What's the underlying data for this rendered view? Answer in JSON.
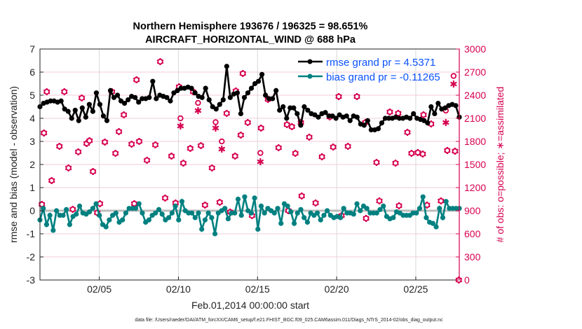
{
  "chart_data": {
    "type": "line",
    "title_line1": "Northern Hemisphere 193676 / 196325 = 98.651%",
    "title_line2": "AIRCRAFT_HORIZONTAL_WIND @ 688 hPa",
    "xlabel": "Feb.01,2014 00:00:00 start",
    "ylabel_left": "rmse and bias (model - observation)",
    "ylabel_right": "# of obs: o=possible; ∗=assimilated",
    "footer": "data file: /Users/raeder/DAI/ATM_forcXX/CAM6_setup/f.e21.FHIST_BGC.f09_025.CAM6assim.011/Diags_NTrS_2014-02/obs_diag_output.nc",
    "x_range_days": [
      1.25,
      27.75
    ],
    "ylim_left": [
      -3,
      7
    ],
    "ylim_right": [
      0,
      3000
    ],
    "x_ticks": [
      {
        "day": 5,
        "label": "02/05"
      },
      {
        "day": 10,
        "label": "02/10"
      },
      {
        "day": 15,
        "label": "02/15"
      },
      {
        "day": 20,
        "label": "02/20"
      },
      {
        "day": 25,
        "label": "02/25"
      }
    ],
    "y_ticks_left": [
      "7",
      "6",
      "5",
      "4",
      "3",
      "2",
      "1",
      "0",
      "-1",
      "-2",
      "-3"
    ],
    "y_ticks_right": [
      "3000",
      "2700",
      "2400",
      "2100",
      "1800",
      "1500",
      "1200",
      "900",
      "600",
      "300",
      "0"
    ],
    "legend": [
      {
        "label": "rmse grand pr = 4.5371",
        "color": "#000000"
      },
      {
        "label": "bias grand pr = -0.11265",
        "color": "#008080"
      }
    ],
    "legend_text_color": "#0a52ff",
    "right_axis_color": "#d6004f",
    "series": [
      {
        "name": "rmse",
        "color": "#000000",
        "values": [
          4.5,
          4.65,
          4.7,
          4.75,
          4.75,
          4.7,
          4.75,
          4.4,
          4.3,
          4.0,
          4.35,
          3.9,
          4.45,
          4.05,
          4.6,
          4.3,
          5.1,
          4.6,
          4.1,
          3.9,
          5.2,
          4.9,
          5.0,
          4.75,
          4.65,
          4.8,
          4.95,
          4.9,
          4.7,
          4.85,
          4.85,
          4.9,
          5.6,
          4.85,
          5.0,
          4.95,
          4.9,
          4.75,
          5.1,
          5.2,
          5.3,
          5.3,
          5.35,
          5.3,
          5.1,
          4.95,
          4.9,
          5.3,
          4.8,
          4.5,
          4.4,
          4.6,
          4.8,
          6.25,
          4.9,
          5.05,
          5.1,
          4.2,
          4.9,
          5.1,
          5.3,
          5.5,
          5.6,
          5.9,
          5.0,
          4.85,
          4.85,
          5.2,
          4.35,
          4.5,
          4.0,
          4.45,
          4.45,
          4.2,
          3.7,
          4.5,
          4.35,
          4.2,
          4.15,
          4.05,
          4.2,
          4.25,
          4.1,
          4.1,
          4.0,
          4.15,
          4.05,
          4.1,
          3.9,
          4.1,
          4.05,
          3.75,
          3.7,
          3.9,
          3.5,
          3.5,
          3.55,
          3.8,
          4.0,
          4.0,
          4.0,
          4.05,
          4.0,
          4.0,
          4.05,
          4.0,
          4.2,
          4.0,
          3.95,
          3.9,
          3.8,
          4.5,
          4.2,
          4.65,
          4.4,
          4.45,
          4.55,
          4.6,
          4.55,
          4.05
        ]
      },
      {
        "name": "bias",
        "color": "#008080",
        "values": [
          -0.4,
          0.1,
          -0.6,
          -0.2,
          -0.85,
          0.0,
          -0.2,
          -0.2,
          0.05,
          -0.6,
          -0.25,
          -0.15,
          0.2,
          -0.1,
          -0.15,
          -0.05,
          0.1,
          0.3,
          -0.2,
          -0.6,
          -0.7,
          -0.4,
          -0.2,
          -0.1,
          -0.5,
          -0.4,
          -0.1,
          0.1,
          0.1,
          0.1,
          0.3,
          -0.1,
          -0.5,
          -0.4,
          -0.2,
          -0.1,
          0.05,
          -0.15,
          -0.4,
          -0.3,
          -0.1,
          0.2,
          -0.4,
          0.4,
          0.0,
          -0.1,
          -0.1,
          -0.3,
          -0.1,
          -0.8,
          -0.4,
          -0.1,
          -0.3,
          -1.0,
          -0.1,
          0.0,
          0.1,
          -0.35,
          -0.1,
          -0.1,
          0.5,
          -0.2,
          0.6,
          0.0,
          -0.1,
          0.55,
          -0.8,
          0.2,
          -0.1,
          0.1,
          0.0,
          -0.1,
          0.1,
          -0.55,
          0.3,
          0.2,
          -0.05,
          -0.55,
          -0.1,
          0.05,
          -0.3,
          -0.5,
          -0.1,
          -0.2,
          -0.1,
          -0.4,
          -0.2,
          0.0,
          -0.2,
          -0.3,
          -0.25,
          -0.3,
          0.1,
          -0.1,
          -0.1,
          -0.15,
          0.3,
          0.0,
          0.2,
          0.1,
          -0.1,
          -0.1,
          -0.1,
          0.05,
          0.2,
          -0.25,
          -0.35,
          -0.3,
          -0.05,
          -0.1,
          -0.2,
          -0.2,
          -0.2,
          -0.1,
          -0.1,
          0.1,
          0.6,
          -0.3,
          -0.5,
          -0.55,
          -0.7,
          0.1,
          -0.3,
          0.4,
          0.1,
          0.1,
          0.1,
          0.1
        ]
      }
    ],
    "obs_columns": [
      "day",
      "possible",
      "assimilated"
    ],
    "obs": [
      [
        1.37,
        982,
        982
      ],
      [
        1.5,
        1909,
        1909
      ],
      [
        1.68,
        2445,
        2445
      ],
      [
        1.99,
        1291,
        1291
      ],
      [
        2.48,
        1736,
        1736
      ],
      [
        2.79,
        2445,
        2445
      ],
      [
        3.05,
        1455,
        1455
      ],
      [
        3.32,
        918,
        918
      ],
      [
        3.67,
        1664,
        1664
      ],
      [
        3.89,
        2364,
        2364
      ],
      [
        4.2,
        1773,
        1773
      ],
      [
        4.38,
        1809,
        1809
      ],
      [
        4.6,
        1409,
        1409
      ],
      [
        4.87,
        873,
        873
      ],
      [
        5.04,
        991,
        991
      ],
      [
        5.35,
        1791,
        1791
      ],
      [
        5.8,
        2445,
        2445
      ],
      [
        6.02,
        1645,
        1645
      ],
      [
        6.24,
        1927,
        1927
      ],
      [
        6.55,
        2145,
        2145
      ],
      [
        7.04,
        1764,
        1764
      ],
      [
        7.21,
        991,
        991
      ],
      [
        7.35,
        2600,
        2600
      ],
      [
        7.52,
        1800,
        1800
      ],
      [
        8.01,
        1555,
        1555
      ],
      [
        8.54,
        1755,
        1755
      ],
      [
        8.85,
        2836,
        2836
      ],
      [
        9.16,
        1064,
        1064
      ],
      [
        9.56,
        1609,
        1609
      ],
      [
        9.82,
        1000,
        1000
      ],
      [
        10.04,
        2509,
        2509
      ],
      [
        10.13,
        2100,
        2000
      ],
      [
        10.31,
        1518,
        1518
      ],
      [
        10.75,
        1709,
        1709
      ],
      [
        10.93,
        2445,
        2445
      ],
      [
        11.24,
        2300,
        2200
      ],
      [
        11.42,
        1745,
        1745
      ],
      [
        11.68,
        973,
        973
      ],
      [
        12.12,
        1455,
        1455
      ],
      [
        12.35,
        2050,
        1973
      ],
      [
        12.61,
        1009,
        1009
      ],
      [
        12.74,
        1800,
        1700
      ],
      [
        13.05,
        2164,
        2164
      ],
      [
        13.27,
        882,
        882
      ],
      [
        13.58,
        1609,
        1609
      ],
      [
        13.63,
        2455,
        2455
      ],
      [
        13.94,
        1882,
        1882
      ],
      [
        14.07,
        2682,
        2682
      ],
      [
        14.38,
        2045,
        2045
      ],
      [
        14.65,
        836,
        836
      ],
      [
        15.18,
        1650,
        1536
      ],
      [
        15.22,
        1973,
        1973
      ],
      [
        15.66,
        2345,
        2345
      ],
      [
        16.33,
        1718,
        1718
      ],
      [
        16.86,
        2018,
        2018
      ],
      [
        16.95,
        900,
        900
      ],
      [
        17.17,
        1991,
        1991
      ],
      [
        17.39,
        1645,
        1645
      ],
      [
        17.74,
        2045,
        2045
      ],
      [
        17.79,
        1091,
        1091
      ],
      [
        18.27,
        1855,
        1855
      ],
      [
        18.67,
        1000,
        1000
      ],
      [
        19.07,
        1600,
        1600
      ],
      [
        19.56,
        2118,
        2118
      ],
      [
        19.78,
        1727,
        1727
      ],
      [
        20.13,
        2382,
        2382
      ],
      [
        20.31,
        836,
        836
      ],
      [
        20.71,
        1736,
        1736
      ],
      [
        21.28,
        2382,
        2382
      ],
      [
        21.81,
        2045,
        2045
      ],
      [
        21.86,
        800,
        800
      ],
      [
        22.52,
        1527,
        1527
      ],
      [
        22.7,
        1027,
        1027
      ],
      [
        23.36,
        2182,
        2182
      ],
      [
        23.72,
        1518,
        1518
      ],
      [
        23.89,
        2164,
        2164
      ],
      [
        23.94,
        964,
        964
      ],
      [
        24.47,
        1918,
        1918
      ],
      [
        24.73,
        1645,
        1645
      ],
      [
        25.13,
        1655,
        1655
      ],
      [
        25.44,
        1636,
        1636
      ],
      [
        25.49,
        2145,
        2145
      ],
      [
        25.71,
        973,
        973
      ],
      [
        25.97,
        2027,
        2027
      ],
      [
        26.59,
        1027,
        1027
      ],
      [
        26.9,
        2200,
        2045
      ],
      [
        26.99,
        1682,
        1682
      ],
      [
        27.39,
        2650,
        2545
      ],
      [
        27.48,
        1673,
        1673
      ],
      [
        27.72,
        0,
        0
      ]
    ],
    "grid": true,
    "legend_placement": "top-right"
  }
}
